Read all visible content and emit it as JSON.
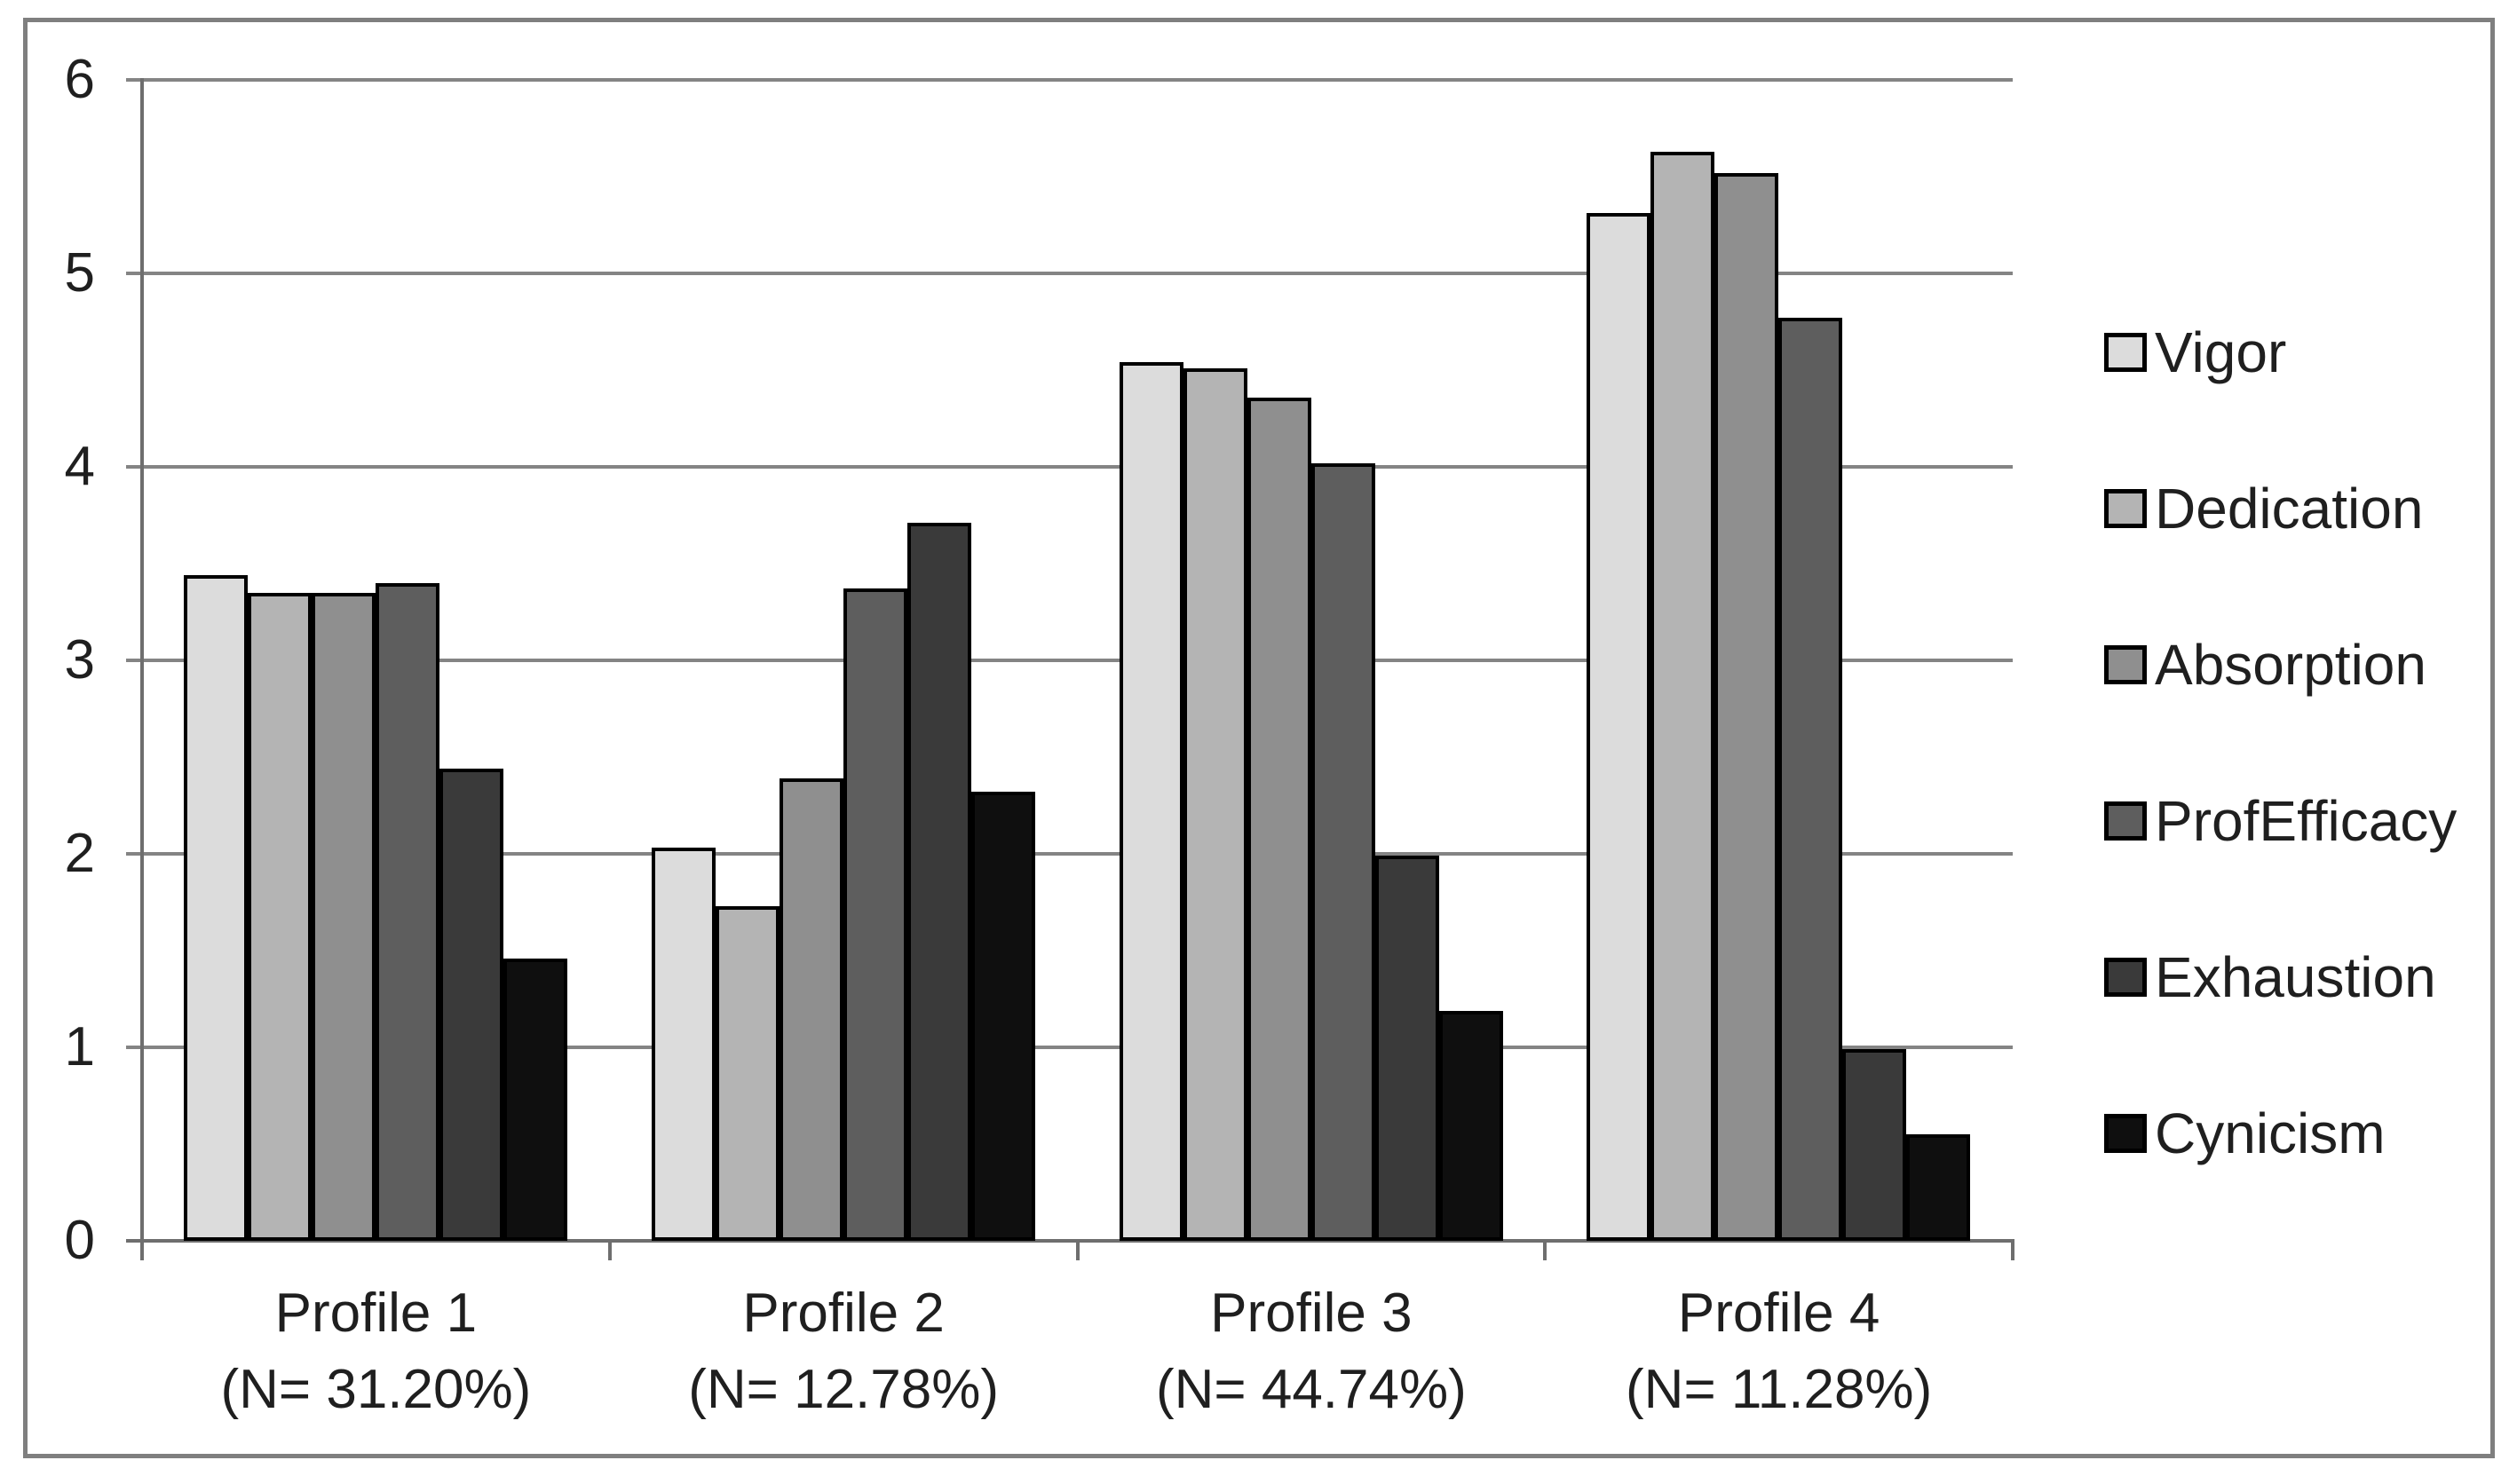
{
  "chart_data": {
    "type": "bar",
    "title": "",
    "categories": [
      {
        "label": "Profile 1",
        "sublabel": "(N= 31.20%)"
      },
      {
        "label": "Profile 2",
        "sublabel": "(N= 12.78%)"
      },
      {
        "label": "Profile 3",
        "sublabel": "(N= 44.74%)"
      },
      {
        "label": "Profile 4",
        "sublabel": "(N= 11.28%)"
      }
    ],
    "series": [
      {
        "name": "Vigor",
        "color": "#dcdcdc",
        "values": [
          3.44,
          2.03,
          4.54,
          5.31
        ]
      },
      {
        "name": "Dedication",
        "color": "#b4b4b4",
        "values": [
          3.35,
          1.73,
          4.51,
          5.63
        ]
      },
      {
        "name": "Absorption",
        "color": "#8f8f8f",
        "values": [
          3.35,
          2.39,
          4.36,
          5.52
        ]
      },
      {
        "name": "ProfEfficacy",
        "color": "#5e5e5e",
        "values": [
          3.4,
          3.37,
          4.02,
          4.77
        ]
      },
      {
        "name": "Exhaustion",
        "color": "#3a3a3a",
        "values": [
          2.44,
          3.71,
          1.99,
          0.99
        ]
      },
      {
        "name": "Cynicism",
        "color": "#0f0f0f",
        "values": [
          1.46,
          2.32,
          1.19,
          0.55
        ]
      }
    ],
    "y_axis": {
      "min": 0,
      "max": 6,
      "step": 1,
      "ticks": [
        "0",
        "1",
        "2",
        "3",
        "4",
        "5",
        "6"
      ]
    },
    "grid": true,
    "legend_position": "right",
    "bar_border_color": "#000000"
  },
  "style": {
    "background": "#ffffff",
    "frame_border_color": "#7f7f7f",
    "gridline_color": "#848484",
    "axis_color": "#6e6e6e",
    "text_color": "#1f1f1f"
  }
}
